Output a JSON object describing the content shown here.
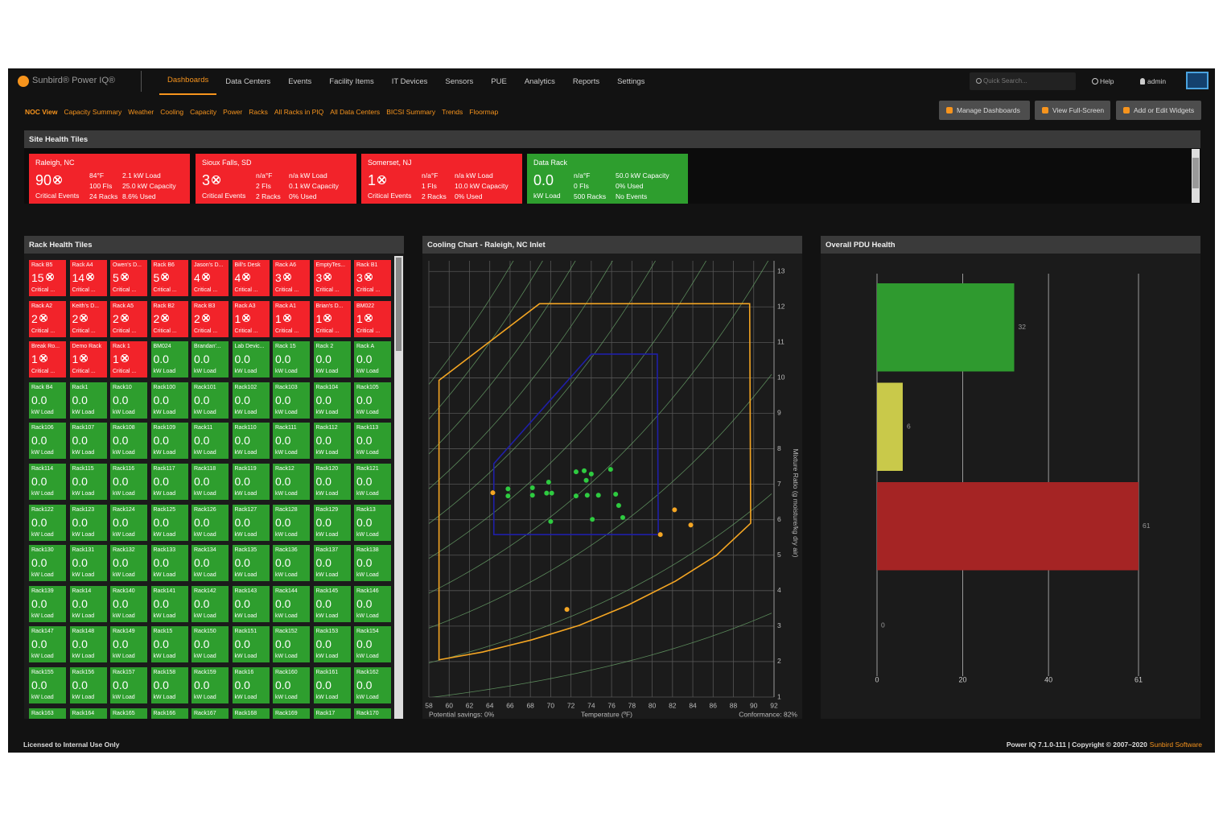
{
  "nav": {
    "logo": "Sunbird® Power IQ®",
    "current": "Dashboards",
    "items": [
      "Data Centers",
      "Events",
      "Facility Items",
      "IT Devices",
      "Sensors",
      "PUE",
      "Analytics",
      "Reports",
      "Settings"
    ],
    "search": "Quick Search...",
    "help": "Help",
    "user": "admin"
  },
  "tabs": {
    "current": "NOC View",
    "items": [
      "Capacity Summary",
      "Weather",
      "Cooling",
      "Capacity",
      "Power",
      "Racks",
      "All Racks in PIQ",
      "All Data Centers",
      "BICSI Summary",
      "Trends",
      "Floormap"
    ]
  },
  "buttons": [
    "Manage Dashboards",
    "View Full-Screen",
    "Add or Edit Widgets"
  ],
  "site_health": {
    "title": "Site Health Tiles",
    "tiles": [
      {
        "name": "Raleigh, NC",
        "value": "90",
        "label": "Critical Events",
        "col1": [
          "84°F",
          "100 FIs",
          "24 Racks"
        ],
        "col2": [
          "2.1 kW Load",
          "25.0 kW Capacity",
          "8.6% Used"
        ],
        "color": "#f2232a"
      },
      {
        "name": "Sioux Falls, SD",
        "value": "3",
        "label": "Critical Events",
        "col1": [
          "n/a°F",
          "2 FIs",
          "2 Racks"
        ],
        "col2": [
          "n/a kW Load",
          "0.1 kW Capacity",
          "0% Used"
        ],
        "color": "#f2232a"
      },
      {
        "name": "Somerset, NJ",
        "value": "1",
        "label": "Critical Events",
        "col1": [
          "n/a°F",
          "1 FIs",
          "2 Racks"
        ],
        "col2": [
          "n/a kW Load",
          "10.0 kW Capacity",
          "0% Used"
        ],
        "color": "#f2232a"
      },
      {
        "name": "Data Rack",
        "value": "0.0",
        "label": "kW Load",
        "col1": [
          "n/a°F",
          "0 FIs",
          "500 Racks"
        ],
        "col2": [
          "50.0 kW Capacity",
          "0% Used",
          "No Events"
        ],
        "color": "#2e9e2e"
      }
    ]
  },
  "rack_health": {
    "title": "Rack Health Tiles",
    "colors": {
      "critical": "#f2232a",
      "normal": "#2e9e2e"
    },
    "critical": [
      [
        "Rack B5",
        "15",
        "Critical ..."
      ],
      [
        "Rack A4",
        "14",
        "Critical ..."
      ],
      [
        "Owen's D...",
        "5",
        "Critical ..."
      ],
      [
        "Rack B6",
        "5",
        "Critical ..."
      ],
      [
        "Jason's D...",
        "4",
        "Critical ..."
      ],
      [
        "Bill's Desk",
        "4",
        "Critical ..."
      ],
      [
        "Rack A6",
        "3",
        "Critical ..."
      ],
      [
        "EmptyTes...",
        "3",
        "Critical ..."
      ],
      [
        "Rack B1",
        "3",
        "Critical ..."
      ],
      [
        "Rack A2",
        "2",
        "Critical ..."
      ],
      [
        "Keith's D...",
        "2",
        "Critical ..."
      ],
      [
        "Rack A5",
        "2",
        "Critical ..."
      ],
      [
        "Rack B2",
        "2",
        "Critical ..."
      ],
      [
        "Rack B3",
        "2",
        "Critical ..."
      ],
      [
        "Rack A3",
        "1",
        "Critical ..."
      ],
      [
        "Rack A1",
        "1",
        "Critical ..."
      ],
      [
        "Brian's D...",
        "1",
        "Critical ..."
      ],
      [
        "BM022",
        "1",
        "Critical ..."
      ],
      [
        "Break Ro...",
        "1",
        "Critical ..."
      ],
      [
        "Demo Rack",
        "1",
        "Critical ..."
      ],
      [
        "Rack 1",
        "1",
        "Critical ..."
      ]
    ],
    "normal": [
      [
        "BM024",
        "0.0",
        "kW Load"
      ],
      [
        "Brandan'...",
        "0.0",
        "kW Load"
      ],
      [
        "Lab Devic...",
        "0.0",
        "kW Load"
      ],
      [
        "Rack 15",
        "0.0",
        "kW Load"
      ],
      [
        "Rack 2",
        "0.0",
        "kW Load"
      ],
      [
        "Rack A",
        "0.0",
        "kW Load"
      ],
      [
        "Rack B4",
        "0.0",
        "kW Load"
      ],
      [
        "Rack1",
        "0.0",
        "kW Load"
      ],
      [
        "Rack10",
        "0.0",
        "kW Load"
      ],
      [
        "Rack100",
        "0.0",
        "kW Load"
      ],
      [
        "Rack101",
        "0.0",
        "kW Load"
      ],
      [
        "Rack102",
        "0.0",
        "kW Load"
      ],
      [
        "Rack103",
        "0.0",
        "kW Load"
      ],
      [
        "Rack104",
        "0.0",
        "kW Load"
      ],
      [
        "Rack105",
        "0.0",
        "kW Load"
      ],
      [
        "Rack106",
        "0.0",
        "kW Load"
      ],
      [
        "Rack107",
        "0.0",
        "kW Load"
      ],
      [
        "Rack108",
        "0.0",
        "kW Load"
      ],
      [
        "Rack109",
        "0.0",
        "kW Load"
      ],
      [
        "Rack11",
        "0.0",
        "kW Load"
      ],
      [
        "Rack110",
        "0.0",
        "kW Load"
      ],
      [
        "Rack111",
        "0.0",
        "kW Load"
      ],
      [
        "Rack112",
        "0.0",
        "kW Load"
      ],
      [
        "Rack113",
        "0.0",
        "kW Load"
      ],
      [
        "Rack114",
        "0.0",
        "kW Load"
      ],
      [
        "Rack115",
        "0.0",
        "kW Load"
      ],
      [
        "Rack116",
        "0.0",
        "kW Load"
      ],
      [
        "Rack117",
        "0.0",
        "kW Load"
      ],
      [
        "Rack118",
        "0.0",
        "kW Load"
      ],
      [
        "Rack119",
        "0.0",
        "kW Load"
      ],
      [
        "Rack12",
        "0.0",
        "kW Load"
      ],
      [
        "Rack120",
        "0.0",
        "kW Load"
      ],
      [
        "Rack121",
        "0.0",
        "kW Load"
      ],
      [
        "Rack122",
        "0.0",
        "kW Load"
      ],
      [
        "Rack123",
        "0.0",
        "kW Load"
      ],
      [
        "Rack124",
        "0.0",
        "kW Load"
      ],
      [
        "Rack125",
        "0.0",
        "kW Load"
      ],
      [
        "Rack126",
        "0.0",
        "kW Load"
      ],
      [
        "Rack127",
        "0.0",
        "kW Load"
      ],
      [
        "Rack128",
        "0.0",
        "kW Load"
      ],
      [
        "Rack129",
        "0.0",
        "kW Load"
      ],
      [
        "Rack13",
        "0.0",
        "kW Load"
      ],
      [
        "Rack130",
        "0.0",
        "kW Load"
      ],
      [
        "Rack131",
        "0.0",
        "kW Load"
      ],
      [
        "Rack132",
        "0.0",
        "kW Load"
      ],
      [
        "Rack133",
        "0.0",
        "kW Load"
      ],
      [
        "Rack134",
        "0.0",
        "kW Load"
      ],
      [
        "Rack135",
        "0.0",
        "kW Load"
      ],
      [
        "Rack136",
        "0.0",
        "kW Load"
      ],
      [
        "Rack137",
        "0.0",
        "kW Load"
      ],
      [
        "Rack138",
        "0.0",
        "kW Load"
      ],
      [
        "Rack139",
        "0.0",
        "kW Load"
      ],
      [
        "Rack14",
        "0.0",
        "kW Load"
      ],
      [
        "Rack140",
        "0.0",
        "kW Load"
      ],
      [
        "Rack141",
        "0.0",
        "kW Load"
      ],
      [
        "Rack142",
        "0.0",
        "kW Load"
      ],
      [
        "Rack143",
        "0.0",
        "kW Load"
      ],
      [
        "Rack144",
        "0.0",
        "kW Load"
      ],
      [
        "Rack145",
        "0.0",
        "kW Load"
      ],
      [
        "Rack146",
        "0.0",
        "kW Load"
      ],
      [
        "Rack147",
        "0.0",
        "kW Load"
      ],
      [
        "Rack148",
        "0.0",
        "kW Load"
      ],
      [
        "Rack149",
        "0.0",
        "kW Load"
      ],
      [
        "Rack15",
        "0.0",
        "kW Load"
      ],
      [
        "Rack150",
        "0.0",
        "kW Load"
      ],
      [
        "Rack151",
        "0.0",
        "kW Load"
      ],
      [
        "Rack152",
        "0.0",
        "kW Load"
      ],
      [
        "Rack153",
        "0.0",
        "kW Load"
      ],
      [
        "Rack154",
        "0.0",
        "kW Load"
      ],
      [
        "Rack155",
        "0.0",
        "kW Load"
      ],
      [
        "Rack156",
        "0.0",
        "kW Load"
      ],
      [
        "Rack157",
        "0.0",
        "kW Load"
      ],
      [
        "Rack158",
        "0.0",
        "kW Load"
      ],
      [
        "Rack159",
        "0.0",
        "kW Load"
      ],
      [
        "Rack16",
        "0.0",
        "kW Load"
      ],
      [
        "Rack160",
        "0.0",
        "kW Load"
      ],
      [
        "Rack161",
        "0.0",
        "kW Load"
      ],
      [
        "Rack162",
        "0.0",
        "kW Load"
      ]
    ],
    "partial": [
      "Rack163",
      "Rack164",
      "Rack165",
      "Rack166",
      "Rack167",
      "Rack168",
      "Rack169",
      "Rack17",
      "Rack170"
    ]
  },
  "chart_data": [
    {
      "type": "scatter",
      "title": "Cooling Chart - Raleigh, NC Inlet",
      "xlabel": "Temperature (ºF)",
      "ylabel": "Mixture Ratio (g moisture/kg dry air)",
      "notes": [
        "Potential savings: 0%",
        "Conformance: 82%"
      ],
      "xlim": [
        58,
        92
      ],
      "ylim": [
        1,
        13.3
      ],
      "xticks": [
        58,
        60,
        62,
        64,
        66,
        68,
        70,
        72,
        74,
        76,
        78,
        80,
        82,
        84,
        86,
        88,
        90,
        92
      ],
      "yticks": [
        1,
        2,
        3,
        4,
        5,
        6,
        7,
        8,
        9,
        10,
        11,
        12,
        13
      ],
      "grid": true,
      "envelopes": [
        {
          "color": "#f5a623",
          "x": [
            59.0,
            68.9,
            89.6,
            89.7,
            86.3,
            82.3,
            77.6,
            72.8,
            68.1,
            63.3,
            59.0
          ],
          "y": [
            9.93,
            12.09,
            12.09,
            5.9,
            4.99,
            4.27,
            3.59,
            3.02,
            2.61,
            2.27,
            2.05
          ]
        },
        {
          "color": "#1f1fa8",
          "x": [
            64.4,
            74.0,
            80.5,
            80.6,
            64.4
          ],
          "y": [
            7.58,
            10.67,
            10.67,
            5.58,
            5.58
          ]
        }
      ],
      "series": [
        {
          "color": "#f5a623",
          "x": [
            64.3,
            82.2,
            80.8,
            83.8,
            71.6
          ],
          "values": [
            6.76,
            6.28,
            5.58,
            5.85,
            3.47
          ]
        },
        {
          "color": "#2ecc40",
          "x": [
            65.8,
            65.8,
            68.2,
            68.2,
            69.8,
            69.6,
            70.1,
            70.0,
            72.5,
            73.3,
            74.0,
            73.5,
            72.5,
            73.6,
            74.7,
            75.9,
            76.4,
            76.7,
            77.1,
            74.1
          ],
          "values": [
            6.87,
            6.67,
            6.9,
            6.69,
            7.06,
            6.75,
            6.75,
            5.95,
            7.35,
            7.38,
            7.29,
            7.11,
            6.67,
            6.69,
            6.69,
            7.42,
            6.72,
            6.4,
            6.06,
            6.01
          ]
        }
      ]
    },
    {
      "type": "bar",
      "orientation": "horizontal",
      "title": "Overall PDU Health",
      "categories": [
        null,
        null,
        null,
        null
      ],
      "values": [
        32,
        6,
        61,
        0
      ],
      "colors": [
        "#2f9a2f",
        "#c9c94a",
        "#a52424",
        "#888888"
      ],
      "xlim": [
        0,
        61
      ],
      "xticks": [
        0,
        20,
        40,
        61
      ],
      "grid": true
    }
  ],
  "footer": {
    "license": "Licensed to Internal Use Only",
    "copyright": "Power IQ 7.1.0-111 | Copyright © 2007–2020",
    "company": "Sunbird Software"
  }
}
